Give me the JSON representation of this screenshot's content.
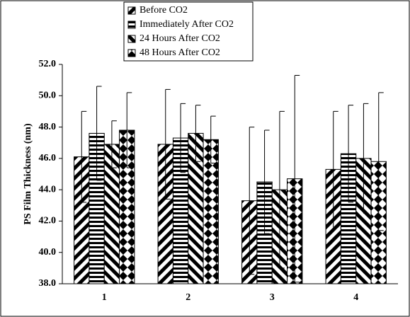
{
  "chart_data": {
    "type": "bar",
    "y_label": "PS Film Thickness (nm)",
    "categories": [
      "1",
      "2",
      "3",
      "4"
    ],
    "series": [
      {
        "name": "Before CO2",
        "color": "#000000",
        "pattern": "diagonal-up",
        "values": [
          46.1,
          46.9,
          43.3,
          45.3
        ],
        "errors": [
          2.9,
          3.5,
          4.7,
          3.7
        ]
      },
      {
        "name": "Immediately After CO2",
        "color": "#000000",
        "pattern": "horizontal",
        "values": [
          47.6,
          47.3,
          44.5,
          46.3
        ],
        "errors": [
          3.0,
          2.2,
          3.3,
          3.1
        ]
      },
      {
        "name": "24 Hours After CO2",
        "color": "#000000",
        "pattern": "diagonal-down",
        "values": [
          46.9,
          47.6,
          44.0,
          46.0
        ],
        "errors": [
          1.5,
          1.8,
          5.0,
          3.5
        ]
      },
      {
        "name": "48 Hours After CO2",
        "color": "#000000",
        "pattern": "diamond",
        "values": [
          47.8,
          47.2,
          44.7,
          45.8
        ],
        "errors": [
          2.4,
          1.5,
          6.6,
          4.4
        ]
      }
    ],
    "ylim": [
      38,
      52
    ],
    "yticks": [
      {
        "value": 38,
        "label": "38.0"
      },
      {
        "value": 40,
        "label": "40.0"
      },
      {
        "value": 42,
        "label": "42.0"
      },
      {
        "value": 44,
        "label": "44.0"
      },
      {
        "value": 46,
        "label": "46.0"
      },
      {
        "value": 48,
        "label": "48.0"
      },
      {
        "value": 50,
        "label": "50.0"
      },
      {
        "value": 52,
        "label": "52.0"
      }
    ],
    "grid": false,
    "legend": "top"
  }
}
